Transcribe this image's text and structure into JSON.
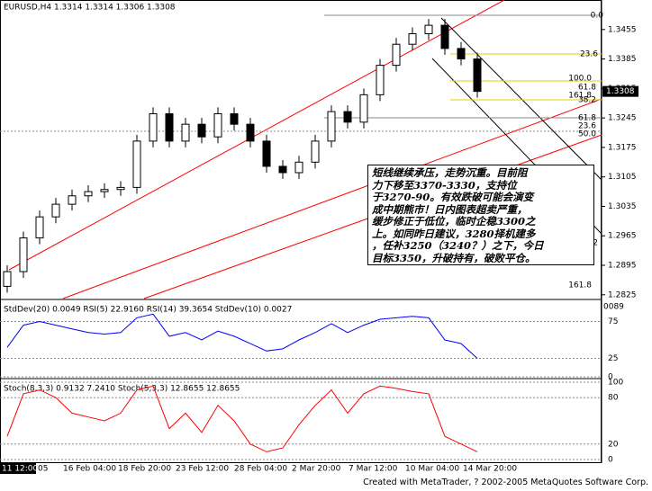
{
  "header": "EURUSD,H4 1.3314 1.3314 1.3306 1.3308",
  "chart_data": [
    {
      "type": "candlestick",
      "open": [
        1.2845,
        1.288,
        1.296,
        1.301,
        1.304,
        1.306,
        1.307,
        1.3075,
        1.308,
        1.319,
        1.3255,
        1.319,
        1.323,
        1.32,
        1.3255,
        1.323,
        1.319,
        1.313,
        1.3115,
        1.314,
        1.319,
        1.326,
        1.3235,
        1.33,
        1.337,
        1.342,
        1.3445,
        1.3465,
        1.341,
        1.3385
      ],
      "high": [
        1.2895,
        1.2975,
        1.3025,
        1.3055,
        1.3075,
        1.3085,
        1.309,
        1.3095,
        1.3205,
        1.327,
        1.327,
        1.3245,
        1.3245,
        1.327,
        1.327,
        1.3245,
        1.3205,
        1.3145,
        1.3155,
        1.3205,
        1.3275,
        1.3275,
        1.3315,
        1.3385,
        1.3435,
        1.346,
        1.348,
        1.348,
        1.3425,
        1.34
      ],
      "low": [
        1.283,
        1.2865,
        1.2945,
        1.2995,
        1.3025,
        1.3045,
        1.3055,
        1.306,
        1.3065,
        1.3175,
        1.3175,
        1.3175,
        1.3185,
        1.3185,
        1.3215,
        1.3175,
        1.3115,
        1.31,
        1.31,
        1.3125,
        1.3175,
        1.322,
        1.322,
        1.3285,
        1.3355,
        1.3405,
        1.343,
        1.3395,
        1.337,
        1.3293
      ],
      "close": [
        1.288,
        1.296,
        1.301,
        1.304,
        1.306,
        1.307,
        1.3075,
        1.308,
        1.319,
        1.3255,
        1.319,
        1.323,
        1.32,
        1.3255,
        1.323,
        1.319,
        1.313,
        1.3115,
        1.314,
        1.319,
        1.326,
        1.3235,
        1.33,
        1.337,
        1.342,
        1.3445,
        1.3465,
        1.341,
        1.3385,
        1.3308
      ],
      "ylim": [
        1.2816,
        1.3508
      ],
      "yticks": [
        1.3455,
        1.3385,
        1.3315,
        1.3245,
        1.3175,
        1.3105,
        1.3035,
        1.2965,
        1.2895,
        1.2825
      ],
      "last_price": 1.3308,
      "x_labels": [
        "11 12:00",
        "05",
        "16 Feb 04:00",
        "18 Feb 20:00",
        "23 Feb 12:00",
        "28 Feb 04:00",
        "2 Mar 20:00",
        "7 Mar 12:00",
        "10 Mar 04:00",
        "14 Mar 20:00"
      ],
      "fib_labels": [
        "0.0",
        "23.6",
        "100.0",
        "61.8",
        "161.8",
        "38.2",
        "61.8",
        "23.6",
        "50.0",
        "100.0",
        "38.2",
        "161.8"
      ],
      "annotation": [
        "短线继续承压，走势沉重。目前阻",
        "力下移至3370-3330，支持位",
        "于3270-90。有效跌破可能会演变",
        "成中期熊市！日内图表超卖严重，",
        "缓步修正于低位，临时企稳3300之",
        "上。如同昨日建议，3280择机建多",
        "，任补3250（3240？）之下，今日",
        "目标3350，升破持有，破败平仓。"
      ]
    },
    {
      "type": "line",
      "title": "StdDev(20) 0.0049 RSI(5) 22.9160 RSI(14) 39.3654 StdDev(10) 0.0027",
      "top_label": "0089",
      "values": [
        40,
        70,
        75,
        70,
        65,
        60,
        58,
        60,
        80,
        85,
        55,
        60,
        50,
        62,
        55,
        45,
        35,
        38,
        50,
        60,
        72,
        60,
        70,
        78,
        80,
        82,
        80,
        50,
        45,
        25
      ],
      "color": "#0000ff",
      "ylim": [
        0,
        100
      ],
      "yticks": [
        75,
        25,
        0
      ]
    },
    {
      "type": "line",
      "title": "Stoch(8,3,3) 0.9132 7.2410 Stoch(5,3,3) 12.8655 12.8655",
      "values": [
        30,
        85,
        90,
        80,
        60,
        55,
        50,
        60,
        90,
        95,
        40,
        60,
        35,
        70,
        50,
        20,
        10,
        15,
        45,
        70,
        90,
        60,
        85,
        95,
        92,
        88,
        85,
        30,
        20,
        10
      ],
      "color": "#ff0000",
      "ylim": [
        0,
        100
      ],
      "yticks": [
        100,
        80,
        20,
        0
      ]
    }
  ],
  "footer": "Created with MetaTrader, ? 2002-2005 MetaQuotes Software Corp."
}
